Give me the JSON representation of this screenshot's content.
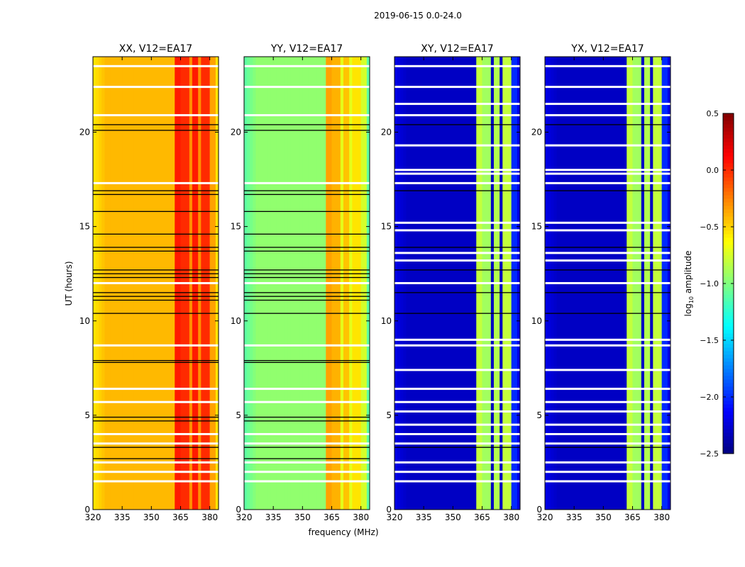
{
  "chart_data": {
    "type": "heatmap",
    "title": "2019-06-15 0.0-24.0",
    "xlabel": "frequency (MHz)",
    "ylabel": "UT (hours)",
    "xlim": [
      320,
      384.5
    ],
    "ylim": [
      0,
      24
    ],
    "xticks": [
      "320",
      "335",
      "350",
      "365",
      "380"
    ],
    "xtick_values": [
      320,
      335,
      350,
      365,
      380
    ],
    "yticks": [
      "0",
      "5",
      "10",
      "15",
      "20"
    ],
    "ytick_values": [
      0,
      5,
      10,
      15,
      20
    ],
    "colorbar": {
      "label_main": "log",
      "label_sub": "10",
      "label_rest": " amplitude",
      "range": [
        -2.5,
        0.5
      ],
      "ticks": [
        "0.5",
        "0.0",
        "−0.5",
        "−1.0",
        "−1.5",
        "−2.0",
        "−2.5"
      ],
      "tick_values": [
        0.5,
        0,
        -0.5,
        -1,
        -1.5,
        -2,
        -2.5
      ],
      "colormap": "jet"
    },
    "panels": [
      {
        "title": "XX, V12=EA17",
        "base": -0.42,
        "edge": -0.55,
        "rfi": [
          [
            362,
            364,
            0.05
          ],
          [
            364,
            365,
            -0.2
          ],
          [
            365,
            369,
            0.0
          ],
          [
            369,
            370,
            -0.3
          ],
          [
            370,
            374,
            0.05
          ],
          [
            374,
            375,
            -0.3
          ],
          [
            375,
            379,
            0.0
          ],
          [
            379,
            382,
            -0.35
          ]
        ],
        "white_lines": [
          23.5,
          22.4,
          20.9,
          17.3,
          12.0,
          8.7,
          6.4,
          5.7,
          4.0,
          3.5,
          2.5,
          2.0,
          1.5
        ],
        "black_lines": [
          20.4,
          20.1,
          16.9,
          16.7,
          15.8,
          14.6,
          13.9,
          13.7,
          12.7,
          12.5,
          12.3,
          11.5,
          11.3,
          11.1,
          10.4,
          7.9,
          7.8,
          4.9,
          4.7,
          3.3,
          2.7
        ]
      },
      {
        "title": "YY, V12=EA17",
        "base": -0.95,
        "edge": -1.1,
        "rfi": [
          [
            362,
            364,
            -0.35
          ],
          [
            364,
            365,
            -0.6
          ],
          [
            365,
            369,
            -0.4
          ],
          [
            369,
            370,
            -0.7
          ],
          [
            370,
            374,
            -0.45
          ],
          [
            374,
            375,
            -0.7
          ],
          [
            375,
            379,
            -0.55
          ],
          [
            379,
            382,
            -0.75
          ]
        ],
        "white_lines": [
          23.5,
          22.4,
          20.9,
          17.3,
          12.0,
          8.7,
          6.4,
          5.7,
          4.0,
          3.5,
          2.5,
          2.0,
          1.5
        ],
        "black_lines": [
          20.4,
          20.1,
          16.9,
          16.7,
          15.8,
          14.6,
          13.9,
          13.7,
          12.7,
          12.5,
          12.3,
          11.5,
          11.3,
          11.1,
          10.4,
          7.9,
          7.8,
          4.9,
          4.7,
          3.3,
          2.7
        ]
      },
      {
        "title": "XY, V12=EA17",
        "base": -2.3,
        "edge": -2.2,
        "rfi": [
          [
            362,
            364,
            -0.8
          ],
          [
            364,
            365,
            -2.3
          ],
          [
            365,
            369,
            -0.9
          ],
          [
            369,
            370,
            -2.3
          ],
          [
            370,
            374,
            -0.85
          ],
          [
            374,
            375,
            -2.3
          ],
          [
            375,
            379,
            -0.8
          ],
          [
            379,
            382,
            -2.0
          ]
        ],
        "white_lines": [
          23.5,
          22.4,
          21.5,
          20.9,
          19.3,
          18.0,
          17.8,
          17.3,
          15.2,
          14.8,
          13.6,
          13.2,
          12.0,
          9.0,
          8.7,
          7.4,
          6.4,
          5.7,
          5.2,
          4.5,
          4.0,
          3.5,
          2.5,
          2.0,
          1.5
        ],
        "black_lines": [
          20.4,
          16.9,
          13.9,
          12.7,
          11.5,
          10.4,
          3.3
        ]
      },
      {
        "title": "YX, V12=EA17",
        "base": -2.3,
        "edge": -2.2,
        "rfi": [
          [
            362,
            364,
            -0.8
          ],
          [
            364,
            365,
            -2.3
          ],
          [
            365,
            369,
            -0.9
          ],
          [
            369,
            370,
            -2.3
          ],
          [
            370,
            374,
            -0.85
          ],
          [
            374,
            375,
            -2.3
          ],
          [
            375,
            379,
            -0.8
          ],
          [
            379,
            382,
            -2.0
          ]
        ],
        "white_lines": [
          23.5,
          22.4,
          21.5,
          20.9,
          19.3,
          18.0,
          17.8,
          17.3,
          15.2,
          14.8,
          13.6,
          13.2,
          12.0,
          9.0,
          8.7,
          7.4,
          6.4,
          5.7,
          5.2,
          4.5,
          4.0,
          3.5,
          2.5,
          2.0,
          1.5
        ],
        "black_lines": [
          20.4,
          16.9,
          13.9,
          12.7,
          11.5,
          10.4,
          3.3
        ]
      }
    ]
  }
}
